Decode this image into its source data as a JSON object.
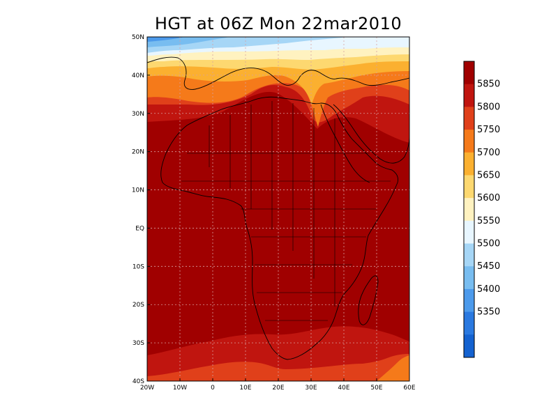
{
  "title": "HGT at 06Z Mon 22mar2010",
  "map": {
    "lon_range": [
      -20,
      60
    ],
    "lat_range": [
      -40,
      50
    ],
    "lon_ticks": [
      {
        "value": -20,
        "label": "20W"
      },
      {
        "value": -10,
        "label": "10W"
      },
      {
        "value": 0,
        "label": "0"
      },
      {
        "value": 10,
        "label": "10E"
      },
      {
        "value": 20,
        "label": "20E"
      },
      {
        "value": 30,
        "label": "30E"
      },
      {
        "value": 40,
        "label": "40E"
      },
      {
        "value": 50,
        "label": "50E"
      },
      {
        "value": 60,
        "label": "60E"
      }
    ],
    "lat_ticks": [
      {
        "value": 50,
        "label": "50N"
      },
      {
        "value": 40,
        "label": "40N"
      },
      {
        "value": 30,
        "label": "30N"
      },
      {
        "value": 20,
        "label": "20N"
      },
      {
        "value": 10,
        "label": "10N"
      },
      {
        "value": 0,
        "label": "EQ"
      },
      {
        "value": -10,
        "label": "10S"
      },
      {
        "value": -20,
        "label": "20S"
      },
      {
        "value": -30,
        "label": "30S"
      },
      {
        "value": -40,
        "label": "40S"
      }
    ],
    "grid": "dashed"
  },
  "colorbar": {
    "labels": [
      "5850",
      "5800",
      "5750",
      "5700",
      "5650",
      "5600",
      "5550",
      "5500",
      "5450",
      "5400",
      "5350"
    ],
    "colors": [
      "#a00000",
      "#c0150f",
      "#e0401a",
      "#f57a1a",
      "#fbb030",
      "#fdd870",
      "#fff2c0",
      "#e8f6ff",
      "#a6d6f6",
      "#78bdf0",
      "#4c9aeb",
      "#2a79e0",
      "#1462d0"
    ]
  },
  "colors": {
    "h5950": "#a00000",
    "h5850": "#c0150f",
    "h5800": "#e0401a",
    "h5750": "#f57a1a",
    "h5700": "#fbb030",
    "h5650": "#fdd870",
    "h5600": "#fff2c0",
    "h5550": "#e8f6ff",
    "h5500": "#a6d6f6",
    "h5450": "#78bdf0",
    "h5400": "#4c9aeb"
  }
}
